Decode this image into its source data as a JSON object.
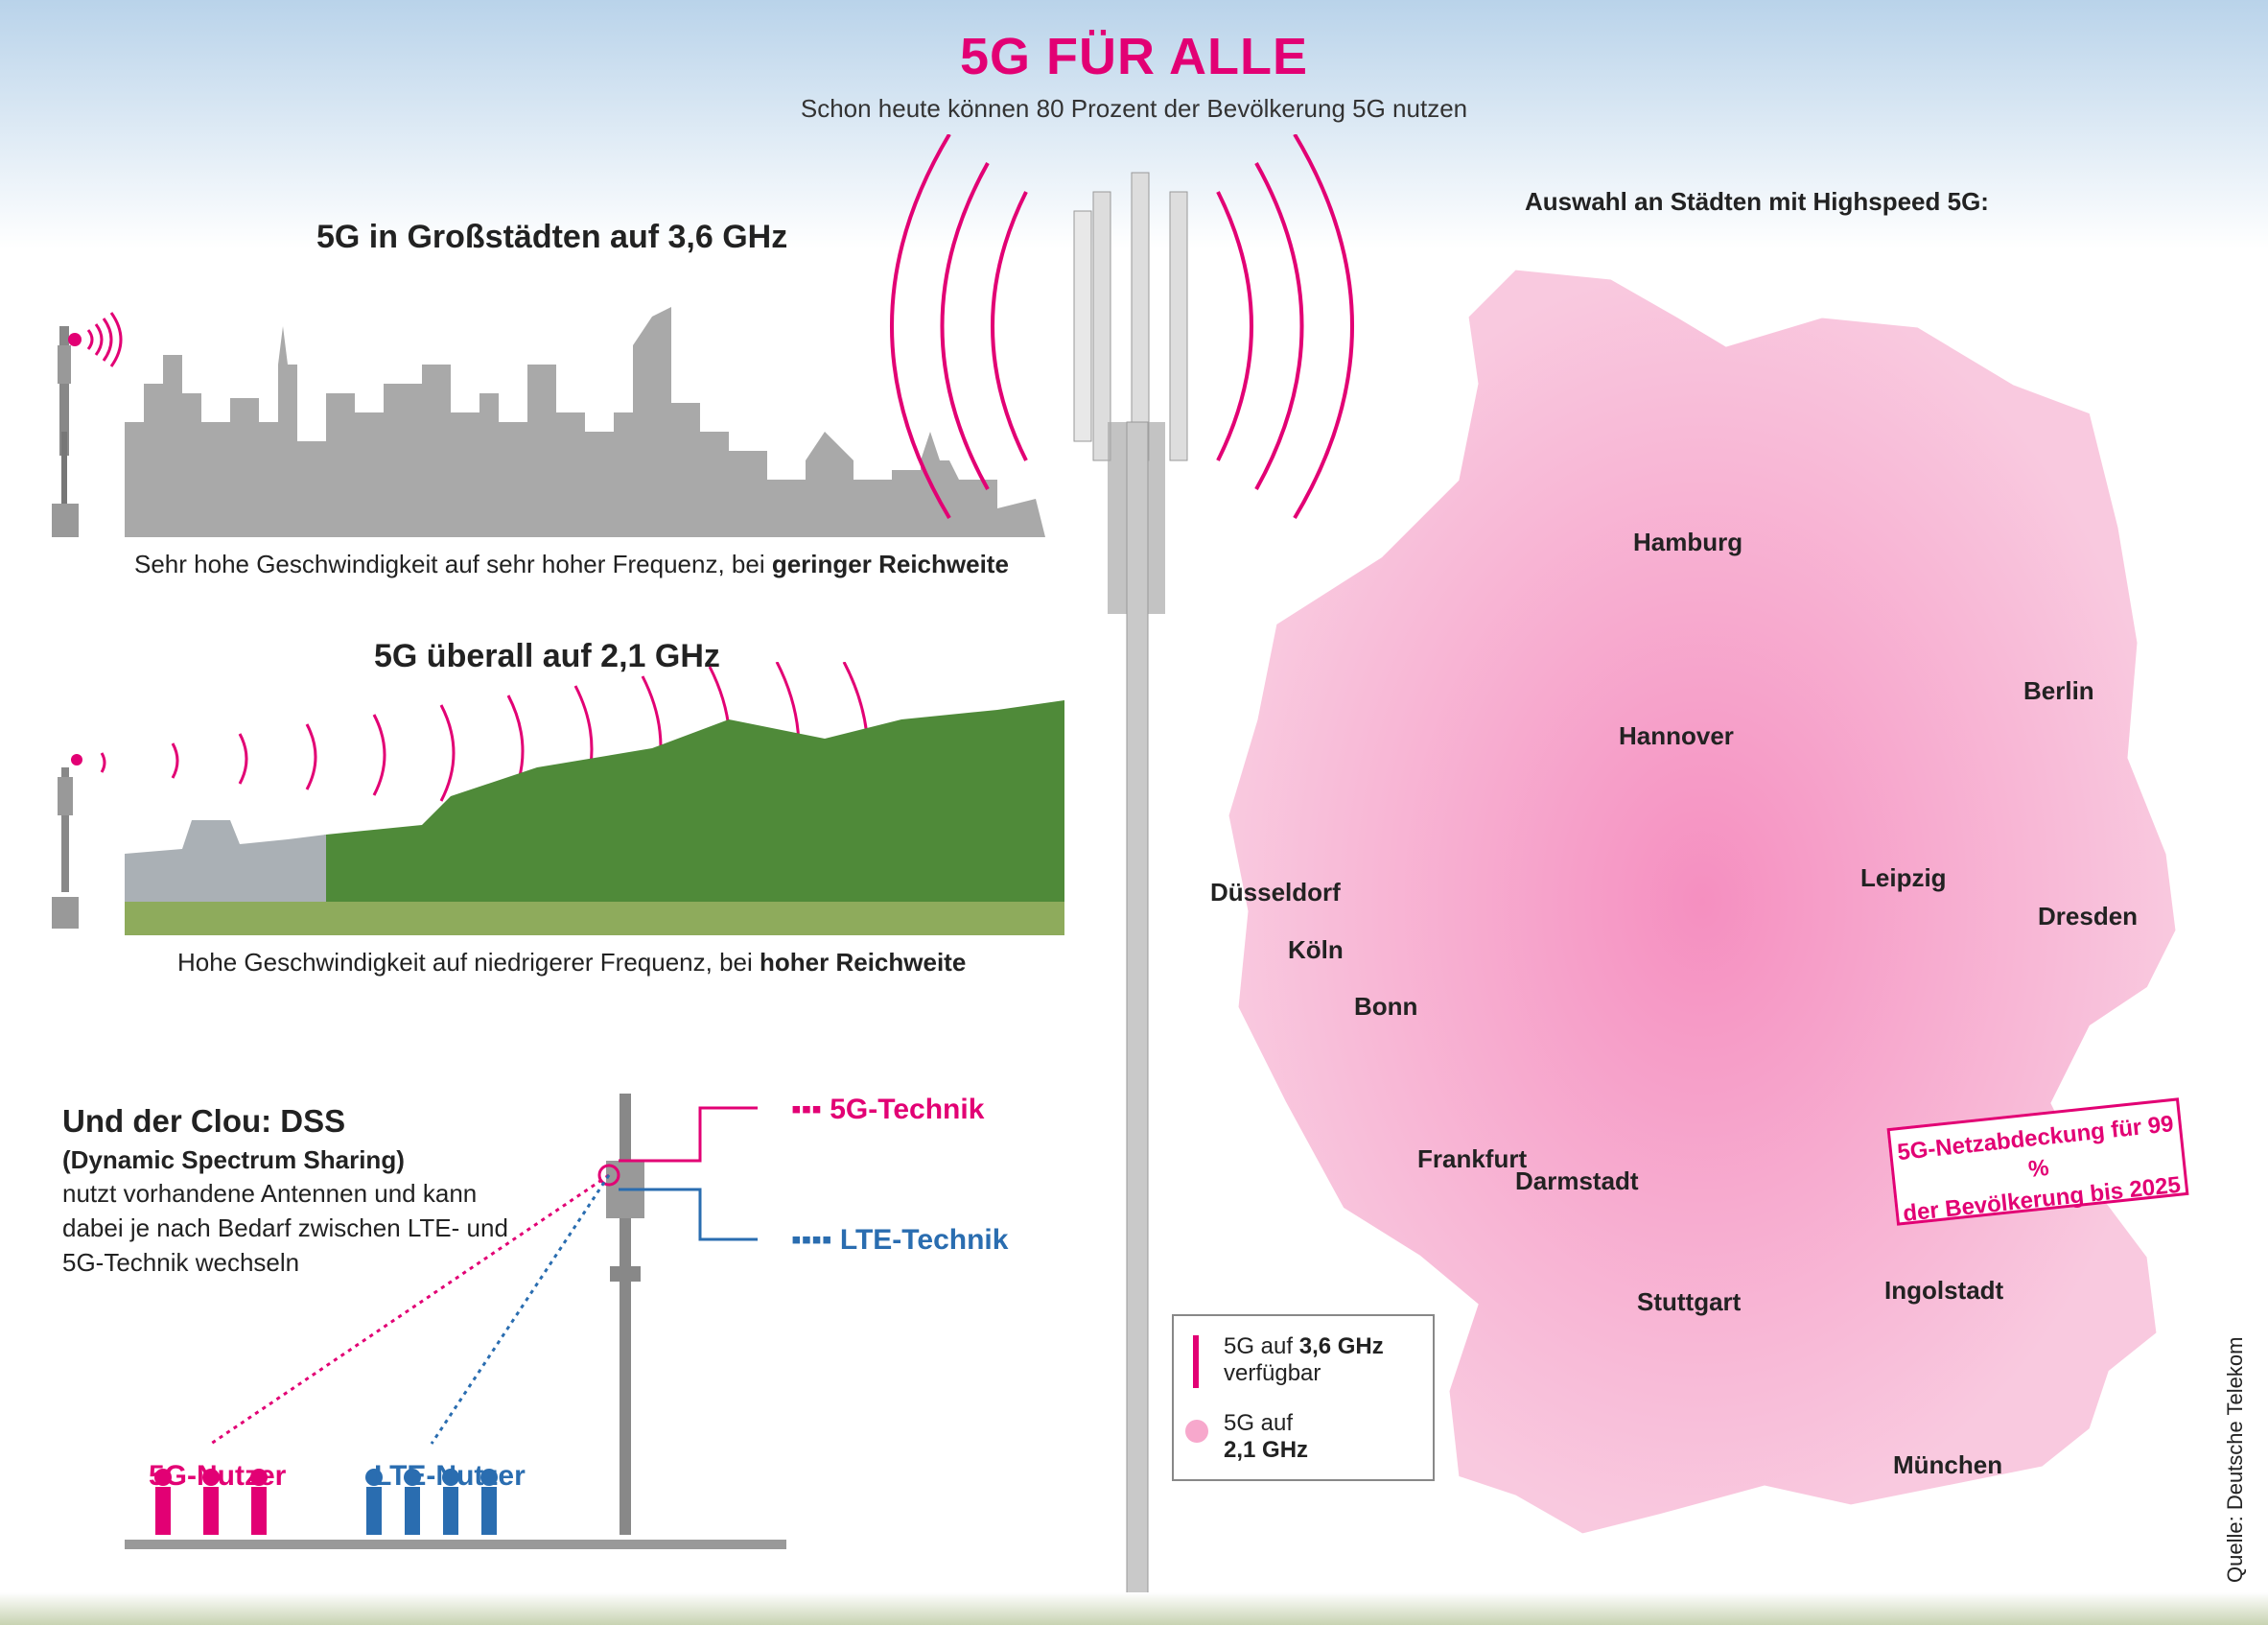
{
  "header": {
    "title": "5G FÜR ALLE",
    "subtitle": "Schon heute können 80 Prozent der Bevölkerung 5G nutzen"
  },
  "section_36": {
    "heading": "5G in Großstädten auf 3,6 GHz",
    "caption_pre": "Sehr hohe Geschwindigkeit auf sehr hoher Frequenz, bei ",
    "caption_bold": "geringer Reichweite"
  },
  "section_21": {
    "heading": "5G überall auf 2,1 GHz",
    "caption_pre": "Hohe Geschwindigkeit auf niedrigerer Frequenz, bei ",
    "caption_bold": "hoher Reichweite"
  },
  "dss": {
    "title": "Und der Clou: DSS",
    "subtitle": "(Dynamic Spectrum Sharing)",
    "text": "nutzt vorhandene Antennen und kann dabei je nach Bedarf zwischen LTE- und 5G-Technik wechseln",
    "tech_5g": "5G-Technik",
    "tech_lte": "LTE-Technik",
    "user_5g": "5G-Nutzer",
    "user_lte": "LTE-Nutzer"
  },
  "map": {
    "heading": "Auswahl an Städten mit Highspeed 5G:",
    "cities": [
      "Hamburg",
      "Berlin",
      "Hannover",
      "Leipzig",
      "Dresden",
      "Düsseldorf",
      "Köln",
      "Bonn",
      "Frankfurt",
      "Darmstadt",
      "Stuttgart",
      "Ingolstadt",
      "München"
    ],
    "coverage_note_line1": "5G-Netzabdeckung für 99 %",
    "coverage_note_line2": "der Bevölkerung bis 2025"
  },
  "legend": {
    "item1_pre": "5G auf ",
    "item1_bold": "3,6 GHz",
    "item1_post": "verfügbar",
    "item2_pre": "5G auf",
    "item2_bold": "2,1 GHz"
  },
  "source": "Quelle: Deutsche Telekom",
  "colors": {
    "magenta": "#e20074",
    "blue": "#2a6db0",
    "grey": "#a9a9a9"
  }
}
